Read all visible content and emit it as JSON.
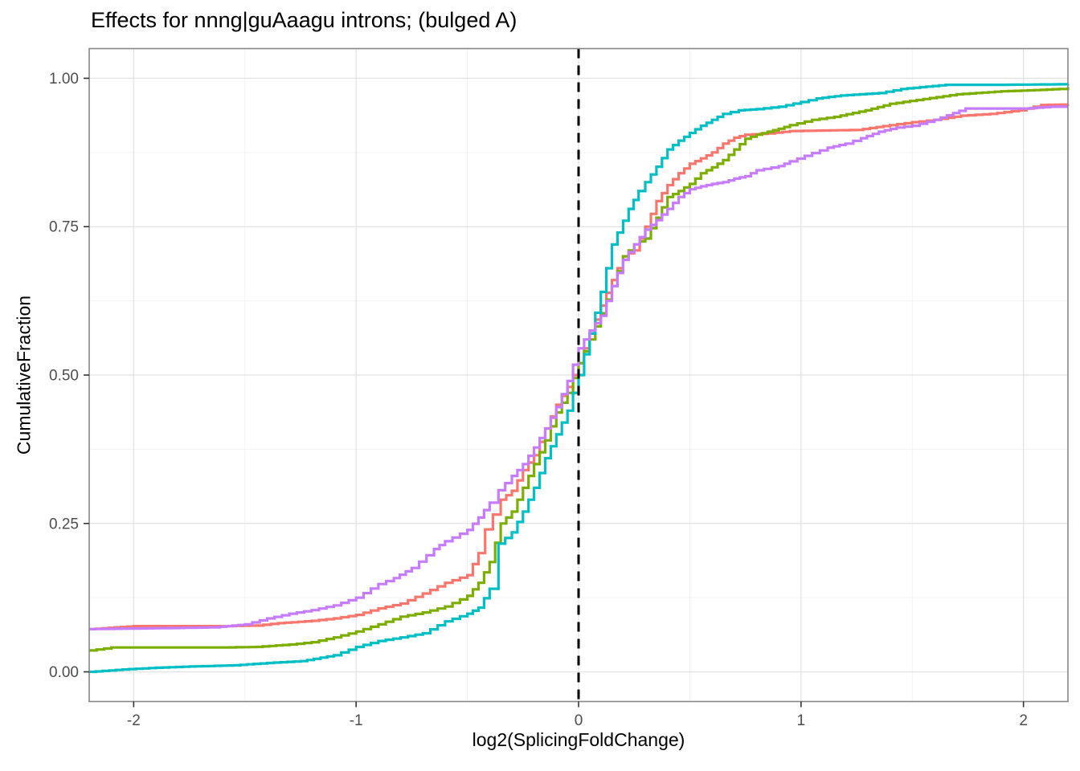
{
  "chart_data": {
    "type": "line",
    "subtype": "ecdf-step",
    "title": "Effects for nnng|guAaagu introns; (bulged A)",
    "xlabel": "log2(SplicingFoldChange)",
    "ylabel": "CumulativeFraction",
    "xlim": [
      -2.2,
      2.2
    ],
    "ylim": [
      -0.05,
      1.05
    ],
    "x_ticks": [
      -2,
      -1,
      0,
      1,
      2
    ],
    "x_tick_labels": [
      "-2",
      "-1",
      "0",
      "1",
      "2"
    ],
    "x_minor_ticks": [
      -1.5,
      -0.5,
      0.5,
      1.5
    ],
    "y_ticks": [
      0,
      0.25,
      0.5,
      0.75,
      1
    ],
    "y_tick_labels": [
      "0.00",
      "0.25",
      "0.50",
      "0.75",
      "1.00"
    ],
    "y_minor_ticks": [
      0.125,
      0.375,
      0.625,
      0.875
    ],
    "grid": true,
    "legend": "none",
    "reference_line": {
      "x": 0,
      "style": "dashed",
      "color": "#000000"
    },
    "panel": {
      "border_color": "#878787",
      "major_grid_color": "#E3E3E3",
      "minor_grid_color": "#F2F2F2",
      "background": "#FFFFFF"
    },
    "series": [
      {
        "name": "salmon",
        "color": "#F8766D",
        "points": [
          [
            -2.2,
            0.072
          ],
          [
            -2.0,
            0.077
          ],
          [
            -1.8,
            0.077
          ],
          [
            -1.6,
            0.077
          ],
          [
            -1.45,
            0.078
          ],
          [
            -1.35,
            0.082
          ],
          [
            -1.2,
            0.086
          ],
          [
            -1.1,
            0.09
          ],
          [
            -1.0,
            0.096
          ],
          [
            -0.9,
            0.107
          ],
          [
            -0.8,
            0.115
          ],
          [
            -0.7,
            0.132
          ],
          [
            -0.6,
            0.15
          ],
          [
            -0.5,
            0.163
          ],
          [
            -0.45,
            0.2
          ],
          [
            -0.42,
            0.24
          ],
          [
            -0.35,
            0.29
          ],
          [
            -0.3,
            0.305
          ],
          [
            -0.25,
            0.34
          ],
          [
            -0.2,
            0.365
          ],
          [
            -0.15,
            0.41
          ],
          [
            -0.1,
            0.45
          ],
          [
            -0.05,
            0.48
          ],
          [
            0.0,
            0.52
          ],
          [
            0.05,
            0.57
          ],
          [
            0.1,
            0.617
          ],
          [
            0.15,
            0.66
          ],
          [
            0.2,
            0.7
          ],
          [
            0.25,
            0.71
          ],
          [
            0.3,
            0.75
          ],
          [
            0.35,
            0.793
          ],
          [
            0.4,
            0.82
          ],
          [
            0.45,
            0.84
          ],
          [
            0.5,
            0.856
          ],
          [
            0.55,
            0.865
          ],
          [
            0.6,
            0.875
          ],
          [
            0.65,
            0.89
          ],
          [
            0.7,
            0.9
          ],
          [
            0.75,
            0.905
          ],
          [
            0.85,
            0.907
          ],
          [
            0.95,
            0.911
          ],
          [
            1.1,
            0.912
          ],
          [
            1.25,
            0.913
          ],
          [
            1.4,
            0.921
          ],
          [
            1.5,
            0.926
          ],
          [
            1.6,
            0.93
          ],
          [
            1.72,
            0.937
          ],
          [
            1.85,
            0.94
          ],
          [
            1.98,
            0.946
          ],
          [
            2.08,
            0.955
          ],
          [
            2.2,
            0.956
          ]
        ]
      },
      {
        "name": "olive",
        "color": "#7CAE00",
        "points": [
          [
            -2.2,
            0.036
          ],
          [
            -2.1,
            0.041
          ],
          [
            -1.8,
            0.041
          ],
          [
            -1.6,
            0.041
          ],
          [
            -1.45,
            0.042
          ],
          [
            -1.3,
            0.046
          ],
          [
            -1.2,
            0.05
          ],
          [
            -1.1,
            0.058
          ],
          [
            -1.0,
            0.068
          ],
          [
            -0.9,
            0.08
          ],
          [
            -0.8,
            0.093
          ],
          [
            -0.7,
            0.1
          ],
          [
            -0.6,
            0.11
          ],
          [
            -0.5,
            0.128
          ],
          [
            -0.45,
            0.15
          ],
          [
            -0.4,
            0.185
          ],
          [
            -0.35,
            0.25
          ],
          [
            -0.3,
            0.27
          ],
          [
            -0.25,
            0.31
          ],
          [
            -0.2,
            0.35
          ],
          [
            -0.15,
            0.39
          ],
          [
            -0.1,
            0.437
          ],
          [
            -0.05,
            0.47
          ],
          [
            0.0,
            0.52
          ],
          [
            0.05,
            0.56
          ],
          [
            0.1,
            0.604
          ],
          [
            0.15,
            0.65
          ],
          [
            0.2,
            0.7
          ],
          [
            0.25,
            0.72
          ],
          [
            0.3,
            0.73
          ],
          [
            0.35,
            0.765
          ],
          [
            0.4,
            0.8
          ],
          [
            0.45,
            0.81
          ],
          [
            0.5,
            0.822
          ],
          [
            0.55,
            0.84
          ],
          [
            0.6,
            0.85
          ],
          [
            0.65,
            0.862
          ],
          [
            0.7,
            0.88
          ],
          [
            0.75,
            0.898
          ],
          [
            0.8,
            0.905
          ],
          [
            0.85,
            0.91
          ],
          [
            0.9,
            0.915
          ],
          [
            0.95,
            0.921
          ],
          [
            1.05,
            0.93
          ],
          [
            1.15,
            0.935
          ],
          [
            1.29,
            0.946
          ],
          [
            1.4,
            0.957
          ],
          [
            1.55,
            0.965
          ],
          [
            1.7,
            0.973
          ],
          [
            1.9,
            0.978
          ],
          [
            2.05,
            0.98
          ],
          [
            2.16,
            0.982
          ],
          [
            2.2,
            0.985
          ]
        ]
      },
      {
        "name": "teal",
        "color": "#00BFC4",
        "points": [
          [
            -2.2,
            0.0
          ],
          [
            -2.05,
            0.004
          ],
          [
            -1.9,
            0.007
          ],
          [
            -1.75,
            0.009
          ],
          [
            -1.55,
            0.011
          ],
          [
            -1.4,
            0.015
          ],
          [
            -1.25,
            0.018
          ],
          [
            -1.1,
            0.028
          ],
          [
            -1.0,
            0.042
          ],
          [
            -0.9,
            0.052
          ],
          [
            -0.8,
            0.058
          ],
          [
            -0.7,
            0.065
          ],
          [
            -0.6,
            0.085
          ],
          [
            -0.5,
            0.098
          ],
          [
            -0.45,
            0.108
          ],
          [
            -0.4,
            0.14
          ],
          [
            -0.36,
            0.216
          ],
          [
            -0.3,
            0.235
          ],
          [
            -0.25,
            0.27
          ],
          [
            -0.2,
            0.31
          ],
          [
            -0.15,
            0.36
          ],
          [
            -0.1,
            0.4
          ],
          [
            -0.05,
            0.44
          ],
          [
            0.0,
            0.5
          ],
          [
            0.05,
            0.57
          ],
          [
            0.1,
            0.64
          ],
          [
            0.15,
            0.72
          ],
          [
            0.225,
            0.78
          ],
          [
            0.27,
            0.81
          ],
          [
            0.3,
            0.825
          ],
          [
            0.35,
            0.851
          ],
          [
            0.4,
            0.88
          ],
          [
            0.45,
            0.895
          ],
          [
            0.5,
            0.908
          ],
          [
            0.55,
            0.92
          ],
          [
            0.6,
            0.93
          ],
          [
            0.65,
            0.94
          ],
          [
            0.72,
            0.946
          ],
          [
            0.8,
            0.948
          ],
          [
            0.9,
            0.952
          ],
          [
            1.0,
            0.96
          ],
          [
            1.07,
            0.966
          ],
          [
            1.18,
            0.971
          ],
          [
            1.35,
            0.975
          ],
          [
            1.45,
            0.982
          ],
          [
            1.65,
            0.989
          ],
          [
            1.9,
            0.989
          ],
          [
            2.2,
            0.99
          ]
        ]
      },
      {
        "name": "violet",
        "color": "#C77CFF",
        "points": [
          [
            -2.2,
            0.072
          ],
          [
            -2.0,
            0.073
          ],
          [
            -1.8,
            0.074
          ],
          [
            -1.64,
            0.075
          ],
          [
            -1.5,
            0.08
          ],
          [
            -1.4,
            0.09
          ],
          [
            -1.3,
            0.098
          ],
          [
            -1.2,
            0.104
          ],
          [
            -1.1,
            0.112
          ],
          [
            -1.0,
            0.125
          ],
          [
            -0.9,
            0.148
          ],
          [
            -0.83,
            0.158
          ],
          [
            -0.75,
            0.175
          ],
          [
            -0.65,
            0.207
          ],
          [
            -0.6,
            0.22
          ],
          [
            -0.5,
            0.239
          ],
          [
            -0.45,
            0.26
          ],
          [
            -0.4,
            0.285
          ],
          [
            -0.36,
            0.306
          ],
          [
            -0.3,
            0.33
          ],
          [
            -0.25,
            0.35
          ],
          [
            -0.2,
            0.378
          ],
          [
            -0.15,
            0.41
          ],
          [
            -0.1,
            0.446
          ],
          [
            -0.05,
            0.49
          ],
          [
            0.0,
            0.545
          ],
          [
            0.05,
            0.575
          ],
          [
            0.1,
            0.6
          ],
          [
            0.15,
            0.65
          ],
          [
            0.2,
            0.694
          ],
          [
            0.25,
            0.72
          ],
          [
            0.3,
            0.745
          ],
          [
            0.35,
            0.761
          ],
          [
            0.4,
            0.78
          ],
          [
            0.45,
            0.8
          ],
          [
            0.5,
            0.813
          ],
          [
            0.55,
            0.818
          ],
          [
            0.6,
            0.822
          ],
          [
            0.65,
            0.825
          ],
          [
            0.7,
            0.831
          ],
          [
            0.75,
            0.835
          ],
          [
            0.8,
            0.845
          ],
          [
            0.9,
            0.852
          ],
          [
            0.95,
            0.86
          ],
          [
            1.05,
            0.874
          ],
          [
            1.12,
            0.883
          ],
          [
            1.2,
            0.89
          ],
          [
            1.27,
            0.899
          ],
          [
            1.35,
            0.91
          ],
          [
            1.43,
            0.917
          ],
          [
            1.5,
            0.92
          ],
          [
            1.6,
            0.93
          ],
          [
            1.74,
            0.949
          ],
          [
            2.0,
            0.949
          ],
          [
            2.12,
            0.952
          ],
          [
            2.2,
            0.952
          ]
        ]
      }
    ]
  }
}
